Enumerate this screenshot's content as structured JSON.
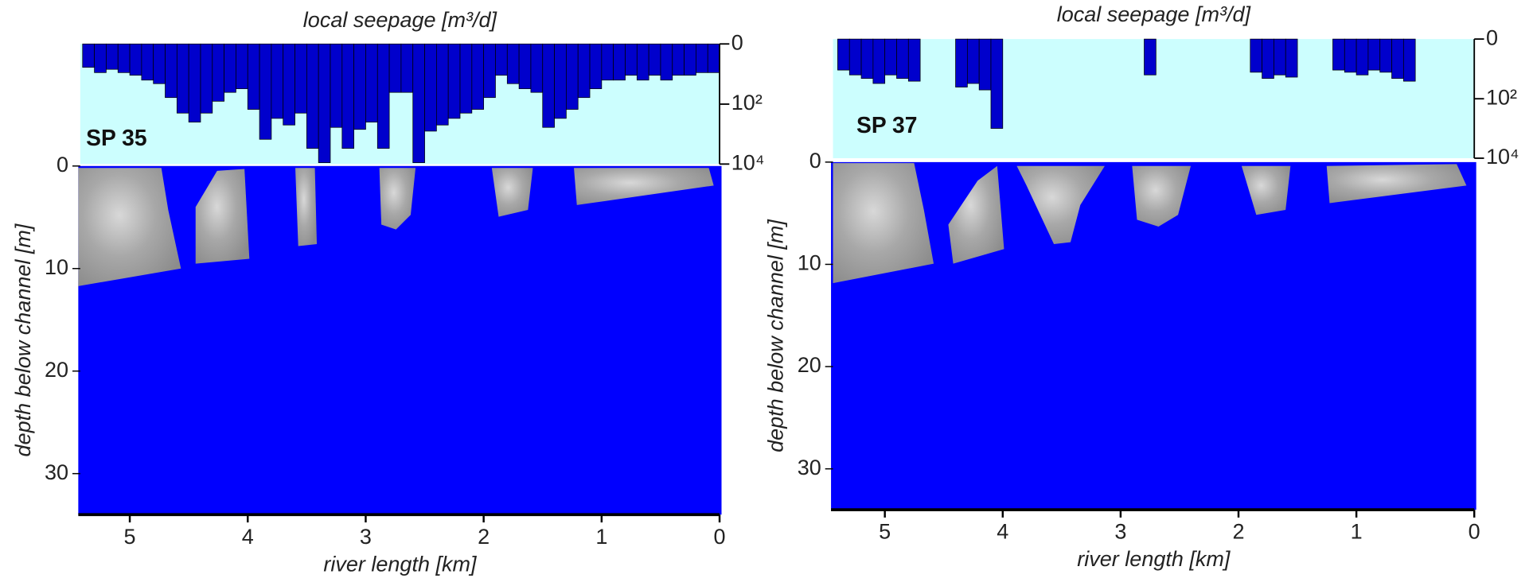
{
  "chart_data": [
    {
      "type": "bar",
      "title": "local seepage [m³/d]",
      "label": "SP 35",
      "x": [
        5.35,
        5.25,
        5.15,
        5.05,
        4.95,
        4.85,
        4.75,
        4.65,
        4.55,
        4.45,
        4.35,
        4.25,
        4.15,
        4.05,
        3.95,
        3.85,
        3.75,
        3.65,
        3.55,
        3.45,
        3.35,
        3.25,
        3.15,
        3.05,
        2.95,
        2.85,
        2.75,
        2.65,
        2.55,
        2.45,
        2.35,
        2.25,
        2.15,
        2.05,
        1.95,
        1.85,
        1.75,
        1.65,
        1.55,
        1.45,
        1.35,
        1.25,
        1.15,
        1.05,
        0.95,
        0.85,
        0.75,
        0.65,
        0.55,
        0.45,
        0.35,
        0.25,
        0.15,
        0.05
      ],
      "values": [
        5,
        8,
        6,
        8,
        10,
        15,
        20,
        60,
        200,
        400,
        200,
        80,
        40,
        30,
        150,
        1500,
        300,
        500,
        200,
        3000,
        9000,
        600,
        3000,
        700,
        400,
        3000,
        40,
        40,
        9000,
        800,
        500,
        300,
        200,
        150,
        60,
        10,
        20,
        30,
        40,
        600,
        300,
        150,
        60,
        30,
        15,
        15,
        10,
        15,
        10,
        15,
        10,
        10,
        8,
        8
      ],
      "color": "#0000cc",
      "background": "#ccfefe",
      "xlim": [
        5.42,
        0
      ],
      "xticks": [
        5,
        4,
        3,
        2,
        1,
        0
      ],
      "xlabel": "river length [km]",
      "yscale": "log1p",
      "ylim": [
        0,
        10000
      ],
      "yticks": [
        0,
        {
          "value": 100,
          "label": "10²"
        },
        {
          "value": 10000,
          "label": "10⁴"
        }
      ],
      "depth": {
        "ylabel": "depth below channel [m]",
        "ylim": [
          0,
          34
        ],
        "yticks": [
          0,
          10,
          20,
          30
        ],
        "color": "#0000ff"
      }
    },
    {
      "type": "bar",
      "title": "local seepage [m³/d]",
      "label": "SP 37",
      "x": [
        5.35,
        5.25,
        5.15,
        5.05,
        4.95,
        4.85,
        4.75,
        4.65,
        4.55,
        4.45,
        4.35,
        4.25,
        4.15,
        4.05,
        3.95,
        3.85,
        3.75,
        3.65,
        3.55,
        3.45,
        3.35,
        3.25,
        3.15,
        3.05,
        2.95,
        2.85,
        2.75,
        2.65,
        2.55,
        2.45,
        2.35,
        2.25,
        2.15,
        2.05,
        1.95,
        1.85,
        1.75,
        1.65,
        1.55,
        1.45,
        1.35,
        1.25,
        1.15,
        1.05,
        0.95,
        0.85,
        0.75,
        0.65,
        0.55,
        0.45,
        0.35,
        0.25,
        0.15,
        0.05
      ],
      "values": [
        10,
        15,
        20,
        30,
        15,
        20,
        25,
        null,
        null,
        null,
        40,
        30,
        50,
        1000,
        null,
        null,
        null,
        null,
        null,
        null,
        null,
        null,
        null,
        null,
        null,
        null,
        15,
        null,
        null,
        null,
        null,
        null,
        null,
        null,
        null,
        12,
        20,
        15,
        18,
        null,
        null,
        null,
        10,
        12,
        15,
        10,
        12,
        20,
        25,
        null,
        null,
        null,
        null,
        null
      ],
      "color": "#0000cc",
      "background": "#ccfefe",
      "xlim": [
        5.44,
        0
      ],
      "xticks": [
        5,
        4,
        3,
        2,
        1,
        0
      ],
      "xlabel": "river length [km]",
      "yscale": "log1p",
      "ylim": [
        0,
        10000
      ],
      "yticks": [
        0,
        {
          "value": 100,
          "label": "10²"
        },
        {
          "value": 10000,
          "label": "10⁴"
        }
      ],
      "depth": {
        "ylabel": "depth below channel [m]",
        "ylim": [
          0,
          34
        ],
        "yticks": [
          0,
          10,
          20,
          30
        ],
        "color": "#0000ff"
      }
    }
  ]
}
